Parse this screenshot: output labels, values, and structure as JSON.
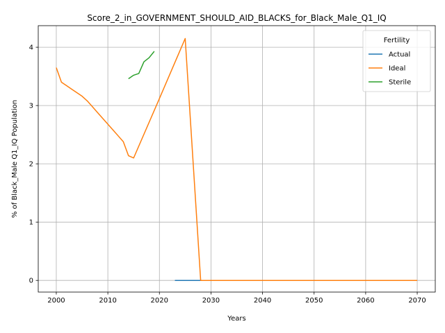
{
  "chart_data": {
    "type": "line",
    "title": "Score_2_in_GOVERNMENT_SHOULD_AID_BLACKS_for_Black_Male_Q1_IQ",
    "xlabel": "Years",
    "ylabel": "% of Black_Male Q1_IQ Population",
    "xlim": [
      1996.5,
      2073.5
    ],
    "ylim": [
      -0.2,
      4.37
    ],
    "xticks": [
      2000,
      2010,
      2020,
      2030,
      2040,
      2050,
      2060,
      2070
    ],
    "yticks": [
      0,
      1,
      2,
      3,
      4
    ],
    "grid": true,
    "legend": {
      "title": "Fertility",
      "placement": "top-right"
    },
    "series": [
      {
        "name": "Actual",
        "color": "#1f77b4",
        "points": [
          [
            2023,
            0
          ],
          [
            2024,
            0
          ],
          [
            2025,
            0
          ],
          [
            2026,
            0
          ],
          [
            2027,
            0
          ],
          [
            2028,
            0
          ]
        ]
      },
      {
        "name": "Ideal",
        "color": "#ff7f0e",
        "points": [
          [
            2000,
            3.65
          ],
          [
            2001,
            3.4
          ],
          [
            2002,
            3.34
          ],
          [
            2003,
            3.28
          ],
          [
            2004,
            3.22
          ],
          [
            2005,
            3.16
          ],
          [
            2006,
            3.08
          ],
          [
            2007,
            2.98
          ],
          [
            2008,
            2.88
          ],
          [
            2009,
            2.78
          ],
          [
            2010,
            2.68
          ],
          [
            2011,
            2.58
          ],
          [
            2012,
            2.48
          ],
          [
            2013,
            2.38
          ],
          [
            2014,
            2.14
          ],
          [
            2015,
            2.1
          ],
          [
            2020,
            3.12
          ],
          [
            2025,
            4.15
          ],
          [
            2028,
            0
          ],
          [
            2030,
            0
          ],
          [
            2040,
            0
          ],
          [
            2050,
            0
          ],
          [
            2060,
            0
          ],
          [
            2070,
            0
          ]
        ]
      },
      {
        "name": "Sterile",
        "color": "#2ca02c",
        "points": [
          [
            2014,
            3.46
          ],
          [
            2015,
            3.52
          ],
          [
            2016,
            3.55
          ],
          [
            2017,
            3.75
          ],
          [
            2018,
            3.82
          ],
          [
            2019,
            3.93
          ]
        ]
      }
    ]
  }
}
